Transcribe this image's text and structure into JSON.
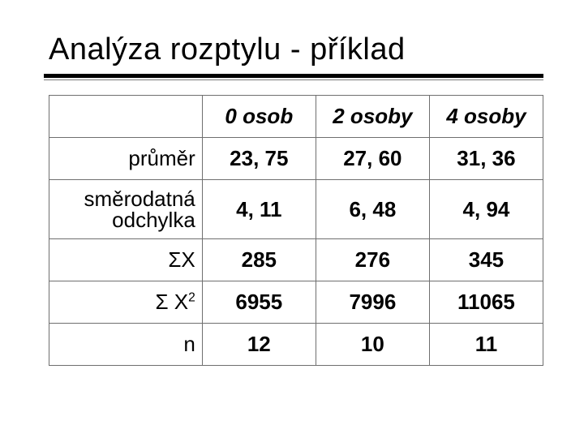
{
  "title": "Analýza rozptylu - příklad",
  "table": {
    "type": "table",
    "columns": [
      "0 osob",
      "2 osoby",
      "4 osoby"
    ],
    "row_labels": [
      "průměr",
      "směrodatná odchylka",
      "ΣX",
      "Σ X²",
      "n"
    ],
    "row_label_html": [
      "průměr",
      "směrodatná<br>odchylka",
      "ΣX",
      "Σ X<span class=\"sup\">2</span>",
      "n"
    ],
    "rows": [
      [
        "23, 75",
        "27, 60",
        "31, 36"
      ],
      [
        "4, 11",
        "6, 48",
        "4, 94"
      ],
      [
        "285",
        "276",
        "345"
      ],
      [
        "6955",
        "7996",
        "11065"
      ],
      [
        "12",
        "10",
        "11"
      ]
    ],
    "colors": {
      "border": "#6f6f6f",
      "text": "#000000",
      "background": "#ffffff",
      "title_rule": "#000000",
      "title_rule_thin": "#7a7a7a"
    },
    "font": {
      "title_size_pt": 28,
      "cell_size_pt": 20,
      "header_italic": true,
      "values_bold": true
    }
  }
}
